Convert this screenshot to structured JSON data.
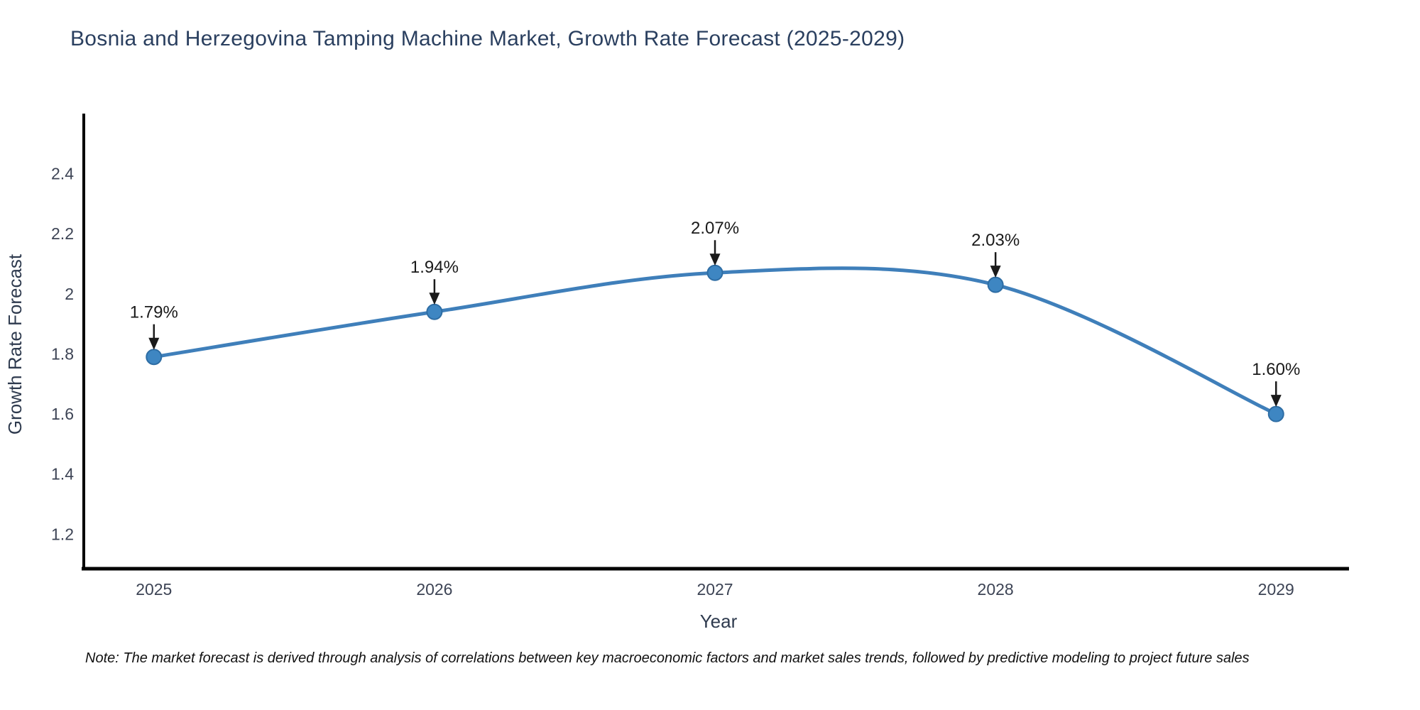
{
  "chart_data": {
    "type": "line",
    "title": "Bosnia and Herzegovina Tamping Machine Market, Growth Rate Forecast (2025-2029)",
    "xlabel": "Year",
    "ylabel": "Growth Rate Forecast",
    "x": [
      2025,
      2026,
      2027,
      2028,
      2029
    ],
    "values": [
      1.79,
      1.94,
      2.07,
      2.03,
      1.6
    ],
    "point_labels": [
      "1.79%",
      "1.94%",
      "2.07%",
      "2.03%",
      "1.60%"
    ],
    "x_tick_labels": [
      "2025",
      "2026",
      "2027",
      "2028",
      "2029"
    ],
    "y_ticks": [
      1.2,
      1.4,
      1.6,
      1.8,
      2,
      2.2,
      2.4
    ],
    "y_tick_labels": [
      "1.2",
      "1.4",
      "1.6",
      "1.8",
      "2",
      "2.2",
      "2.4"
    ],
    "xlim": [
      2024.75,
      2029.26
    ],
    "ylim": [
      1.085,
      2.6
    ],
    "grid": false,
    "legend": "none",
    "line_shape": "spline",
    "line_color": "#3f7fba",
    "marker_color": "#3e86c2",
    "marker_edge_color": "#2e6da4",
    "annotation_color": "#1a1a1a",
    "axis_color": "#000000",
    "title_color": "#2a3f5f",
    "tick_color": "#3d4455",
    "note": "Note: The market forecast is derived through analysis of correlations between key macroeconomic factors and market sales trends, followed by predictive modeling to project future sales"
  }
}
